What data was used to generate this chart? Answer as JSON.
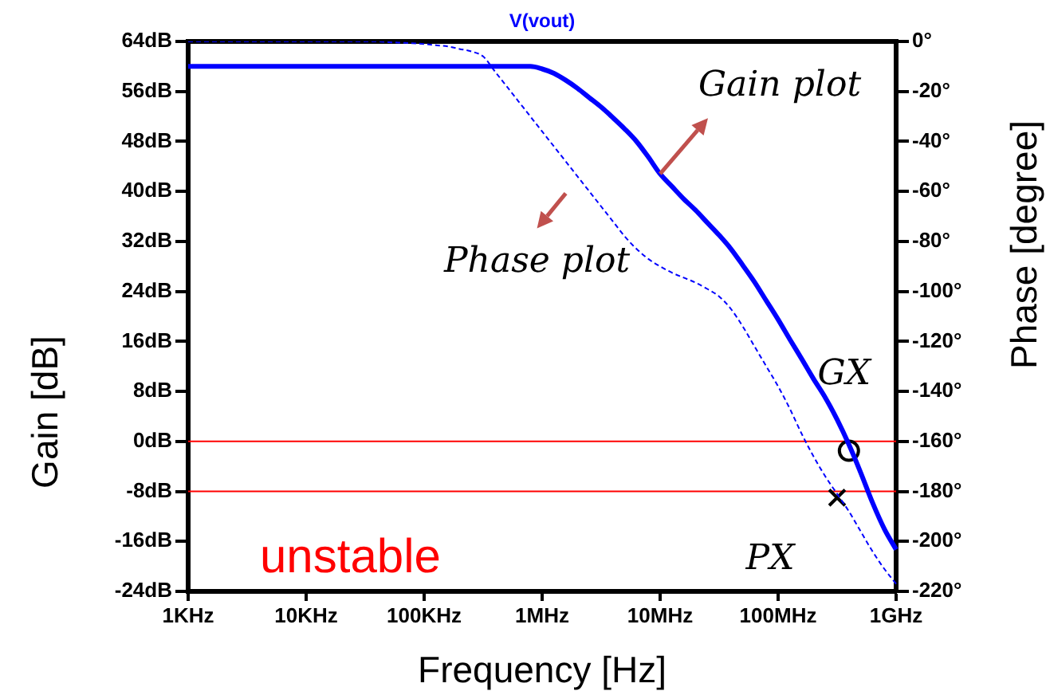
{
  "chart_data": {
    "type": "line",
    "title": "V(vout)",
    "xlabel": "Frequency [Hz]",
    "ylabel": "Gain [dB]",
    "y2label": "Phase [degree]",
    "grid": false,
    "legend": false,
    "categories": [
      "1KHz",
      null,
      null,
      null,
      null,
      null,
      null,
      null,
      null,
      null,
      "10KHz",
      null,
      null,
      null,
      null,
      null,
      null,
      null,
      null,
      null,
      "100KHz",
      null,
      null,
      null,
      null,
      null,
      null,
      null,
      null,
      null,
      "1MHz",
      null,
      null,
      null,
      null,
      null,
      null,
      null,
      null,
      null,
      "10MHz",
      null,
      null,
      null,
      null,
      null,
      null,
      null,
      null,
      null,
      "100MHz",
      null,
      null,
      null,
      null,
      null,
      null,
      null,
      null,
      null,
      "1GHz"
    ],
    "ylim": [
      -24,
      64
    ],
    "yticks": [
      {
        "value": 64,
        "label": "64dB"
      },
      {
        "value": 56,
        "label": "56dB"
      },
      {
        "value": 48,
        "label": "48dB"
      },
      {
        "value": 40,
        "label": "40dB"
      },
      {
        "value": 32,
        "label": "32dB"
      },
      {
        "value": 24,
        "label": "24dB"
      },
      {
        "value": 16,
        "label": "16dB"
      },
      {
        "value": 8,
        "label": "8dB"
      },
      {
        "value": 0,
        "label": "0dB"
      },
      {
        "value": -8,
        "label": "-8dB"
      },
      {
        "value": -16,
        "label": "-16dB"
      },
      {
        "value": -24,
        "label": "-24dB"
      }
    ],
    "y2lim": [
      -220,
      0
    ],
    "y2ticks": [
      {
        "value": 0,
        "label": "0°"
      },
      {
        "value": -20,
        "label": "-20°"
      },
      {
        "value": -40,
        "label": "-40°"
      },
      {
        "value": -60,
        "label": "-60°"
      },
      {
        "value": -80,
        "label": "-80°"
      },
      {
        "value": -100,
        "label": "-100°"
      },
      {
        "value": -120,
        "label": "-120°"
      },
      {
        "value": -140,
        "label": "-140°"
      },
      {
        "value": -160,
        "label": "-160°"
      },
      {
        "value": -180,
        "label": "-180°"
      },
      {
        "value": -200,
        "label": "-200°"
      },
      {
        "value": -220,
        "label": "-220°"
      }
    ],
    "series": [
      {
        "name": "Gain plot",
        "color": "#0000ff",
        "line_style": "solid",
        "values": [
          60,
          60,
          60,
          60,
          60,
          60,
          60,
          60,
          60,
          60,
          60,
          60,
          60,
          60,
          60,
          60,
          60,
          60,
          60,
          60,
          60,
          60,
          60,
          60,
          60,
          60,
          60,
          60,
          60,
          60,
          59.6,
          58.9,
          57.8,
          56.5,
          55,
          53.5,
          51.8,
          50,
          48,
          45.5,
          42.8,
          40.8,
          38.8,
          37,
          35,
          33,
          30.8,
          28.2,
          25.5,
          22.5,
          19.5,
          16.3,
          13.2,
          10,
          7,
          3.5,
          -0.5,
          -5,
          -9.8,
          -14,
          -17.3
        ]
      },
      {
        "name": "Phase plot",
        "axis": "y2",
        "color": "#0000ff",
        "line_style": "dashed",
        "values": [
          0,
          0,
          0,
          0,
          0,
          0,
          0,
          0,
          0,
          0,
          0,
          0,
          0,
          0,
          0,
          0,
          0,
          -0.3,
          -0.5,
          -0.7,
          -1,
          -1.5,
          -2,
          -3,
          -4,
          -6,
          -12,
          -18,
          -24,
          -30,
          -36,
          -42,
          -48,
          -54,
          -60,
          -66,
          -72,
          -78,
          -83,
          -87,
          -90,
          -92.5,
          -94.5,
          -96.5,
          -99,
          -102,
          -107,
          -114,
          -122,
          -130,
          -138,
          -147,
          -157,
          -166,
          -174,
          -181,
          -188,
          -196,
          -204,
          -211,
          -217
        ]
      },
      {
        "type": "scatter",
        "color": "#000000",
        "marker": "circle",
        "values": [
          null,
          null,
          null,
          null,
          null,
          null,
          null,
          null,
          null,
          null,
          null,
          null,
          null,
          null,
          null,
          null,
          null,
          null,
          null,
          null,
          null,
          null,
          null,
          null,
          null,
          null,
          null,
          null,
          null,
          null,
          null,
          null,
          null,
          null,
          null,
          null,
          null,
          null,
          null,
          null,
          null,
          null,
          null,
          null,
          null,
          null,
          null,
          null,
          null,
          null,
          null,
          null,
          null,
          null,
          null,
          null,
          -1.5,
          null,
          null,
          null,
          null
        ]
      },
      {
        "type": "scatter",
        "color": "#000000",
        "marker": "cross",
        "values": [
          null,
          null,
          null,
          null,
          null,
          null,
          null,
          null,
          null,
          null,
          null,
          null,
          null,
          null,
          null,
          null,
          null,
          null,
          null,
          null,
          null,
          null,
          null,
          null,
          null,
          null,
          null,
          null,
          null,
          null,
          null,
          null,
          null,
          null,
          null,
          null,
          null,
          null,
          null,
          null,
          null,
          null,
          null,
          null,
          null,
          null,
          null,
          null,
          null,
          null,
          null,
          null,
          null,
          null,
          null,
          -9,
          null,
          null,
          null,
          null,
          null
        ]
      }
    ],
    "ref_lines": [
      {
        "axis": "y",
        "value": 0,
        "color": "#ff0000"
      },
      {
        "axis": "y",
        "value": -8,
        "color": "#ff0000"
      }
    ],
    "annotations": [
      "unstable",
      "GX",
      "PX"
    ]
  }
}
